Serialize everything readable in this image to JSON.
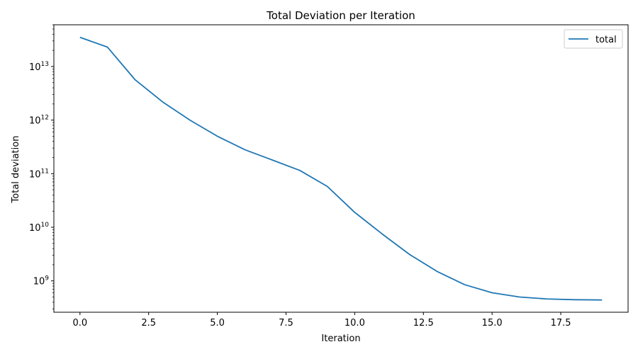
{
  "chart_data": {
    "type": "line",
    "title": "Total Deviation per Iteration",
    "xlabel": "Iteration",
    "ylabel": "Total deviation",
    "y_scale": "log",
    "xlim": [
      -0.95,
      19.95
    ],
    "ylim": [
      260000000,
      60000000000000
    ],
    "x_ticks": [
      0.0,
      2.5,
      5.0,
      7.5,
      10.0,
      12.5,
      15.0,
      17.5
    ],
    "x_tick_labels": [
      "0.0",
      "2.5",
      "5.0",
      "7.5",
      "10.0",
      "12.5",
      "15.0",
      "17.5"
    ],
    "y_ticks": [
      {
        "base": "10",
        "exp": "9"
      },
      {
        "base": "10",
        "exp": "10"
      },
      {
        "base": "10",
        "exp": "11"
      },
      {
        "base": "10",
        "exp": "12"
      },
      {
        "base": "10",
        "exp": "13"
      }
    ],
    "grid": false,
    "legend_position": "top-right",
    "series": [
      {
        "name": "total",
        "color": "#1f77b4",
        "x": [
          0,
          1,
          2,
          3,
          4,
          5,
          6,
          7,
          8,
          9,
          10,
          11,
          12,
          13,
          14,
          15,
          16,
          17,
          18,
          19
        ],
        "y": [
          35000000000000,
          23000000000000,
          5700000000000,
          2200000000000,
          1000000000000,
          500000000000,
          280000000000,
          180000000000,
          115000000000,
          58000000000,
          19000000000,
          7500000000,
          3100000000,
          1500000000,
          850000000,
          600000000,
          500000000,
          460000000,
          445000000,
          440000000
        ]
      }
    ]
  }
}
